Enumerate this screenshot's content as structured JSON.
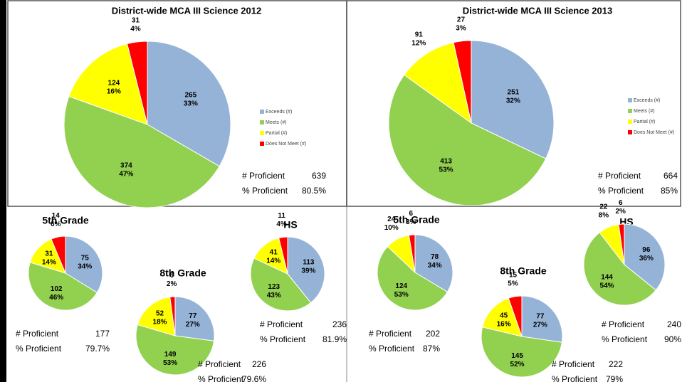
{
  "chart_data": [
    {
      "type": "pie",
      "title": "District-wide MCA III Science 2012",
      "legend": [
        "Exceeds (#)",
        "Meets (#)",
        "Partial (#)",
        "Does Not Meet (#)"
      ],
      "values": [
        265,
        374,
        124,
        31
      ],
      "percent_labels": [
        "33%",
        "47%",
        "16%",
        "4%"
      ],
      "colors": [
        "#95b3d7",
        "#92d050",
        "#ffff00",
        "#ff0000"
      ],
      "stats": [
        {
          "label": "# Proficient",
          "value": 639
        },
        {
          "label": "% Proficient",
          "value": "80.5%"
        }
      ]
    },
    {
      "type": "pie",
      "title": "District-wide MCA III Science 2013",
      "legend": [
        "Exceeds (#)",
        "Meets (#)",
        "Partial (#)",
        "Does Not Meet (#)"
      ],
      "values": [
        251,
        413,
        91,
        27
      ],
      "percent_labels": [
        "32%",
        "53%",
        "12%",
        "3%"
      ],
      "colors": [
        "#95b3d7",
        "#92d050",
        "#ffff00",
        "#ff0000"
      ],
      "stats": [
        {
          "label": "# Proficient",
          "value": 664
        },
        {
          "label": "% Proficient",
          "value": "85%"
        }
      ]
    },
    {
      "type": "pie",
      "title": "5th Grade",
      "values": [
        75,
        102,
        31,
        14
      ],
      "percent_labels": [
        "34%",
        "46%",
        "14%",
        "6%"
      ],
      "colors": [
        "#95b3d7",
        "#92d050",
        "#ffff00",
        "#ff0000"
      ],
      "stats": [
        {
          "label": "# Proficient",
          "value": 177
        },
        {
          "label": "% Proficient",
          "value": "79.7%"
        }
      ]
    },
    {
      "type": "pie",
      "title": "8th Grade",
      "values": [
        77,
        149,
        52,
        6
      ],
      "percent_labels": [
        "27%",
        "53%",
        "18%",
        "2%"
      ],
      "colors": [
        "#95b3d7",
        "#92d050",
        "#ffff00",
        "#ff0000"
      ],
      "stats": [
        {
          "label": "# Proficient",
          "value": 226
        },
        {
          "label": "% Proficient",
          "value": "79.6%"
        }
      ]
    },
    {
      "type": "pie",
      "title": "HS",
      "values": [
        113,
        123,
        41,
        11
      ],
      "percent_labels": [
        "39%",
        "43%",
        "14%",
        "4%"
      ],
      "colors": [
        "#95b3d7",
        "#92d050",
        "#ffff00",
        "#ff0000"
      ],
      "stats": [
        {
          "label": "# Proficient",
          "value": 236
        },
        {
          "label": "% Proficient",
          "value": "81.9%"
        }
      ]
    },
    {
      "type": "pie",
      "title": "5th Grade",
      "values": [
        78,
        124,
        24,
        6
      ],
      "percent_labels": [
        "34%",
        "53%",
        "10%",
        "3%"
      ],
      "colors": [
        "#95b3d7",
        "#92d050",
        "#ffff00",
        "#ff0000"
      ],
      "stats": [
        {
          "label": "# Proficient",
          "value": 202
        },
        {
          "label": "% Proficient",
          "value": "87%"
        }
      ]
    },
    {
      "type": "pie",
      "title": "8th Grade",
      "values": [
        77,
        145,
        45,
        15
      ],
      "percent_labels": [
        "27%",
        "52%",
        "16%",
        "5%"
      ],
      "colors": [
        "#95b3d7",
        "#92d050",
        "#ffff00",
        "#ff0000"
      ],
      "stats": [
        {
          "label": "# Proficient",
          "value": 222
        },
        {
          "label": "% Proficient",
          "value": "79%"
        }
      ]
    },
    {
      "type": "pie",
      "title": "HS",
      "values": [
        96,
        144,
        22,
        6
      ],
      "percent_labels": [
        "36%",
        "54%",
        "8%",
        "2%"
      ],
      "colors": [
        "#95b3d7",
        "#92d050",
        "#ffff00",
        "#ff0000"
      ],
      "stats": [
        {
          "label": "# Proficient",
          "value": 240
        },
        {
          "label": "% Proficient",
          "value": "90%"
        }
      ]
    }
  ]
}
